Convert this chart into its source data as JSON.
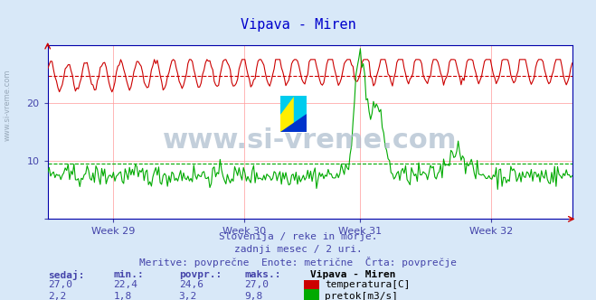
{
  "title": "Vipava - Miren",
  "title_color": "#0000cc",
  "bg_color": "#d8e8f8",
  "plot_bg_color": "#ffffff",
  "grid_color": "#ff9999",
  "axis_color": "#0000aa",
  "text_color": "#4444aa",
  "xlabel_weeks": [
    "Week 29",
    "Week 30",
    "Week 31",
    "Week 32"
  ],
  "ylim_temp": [
    0,
    30
  ],
  "ylim_flow": [
    0,
    10
  ],
  "temp_color": "#cc0000",
  "flow_color": "#00aa00",
  "avg_temp": 24.6,
  "avg_flow": 3.2,
  "temp_min": 22.4,
  "temp_max": 27.0,
  "temp_now": 27.0,
  "flow_min": 1.8,
  "flow_max": 9.8,
  "flow_now": 2.2,
  "watermark": "www.si-vreme.com",
  "subtitle1": "Slovenija / reke in morje.",
  "subtitle2": "zadnji mesec / 2 uri.",
  "subtitle3": "Meritve: povprečne  Enote: metrične  Črta: povprečje",
  "legend_title": "Vipava - Miren",
  "legend_temp": "temperatura[C]",
  "legend_flow": "pretok[m3/s]",
  "table_headers": [
    "sedaj:",
    "min.:",
    "povpr.:",
    "maks.:"
  ],
  "table_temp": [
    "27,0",
    "22,4",
    "24,6",
    "27,0"
  ],
  "table_flow": [
    "2,2",
    "1,8",
    "3,2",
    "9,8"
  ],
  "n_points": 360
}
